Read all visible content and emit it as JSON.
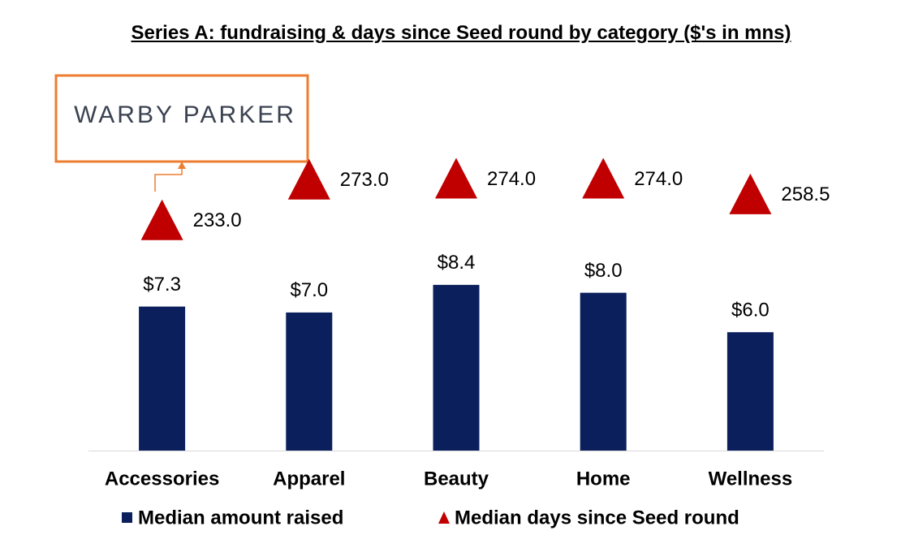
{
  "chart_data": {
    "type": "bar-triangle",
    "title": "Series A: fundraising & days since Seed round by category ($'s in mns)",
    "annotation": "WARBY PARKER",
    "categories": [
      "Accessories",
      "Apparel",
      "Beauty",
      "Home",
      "Wellness"
    ],
    "ylim": [
      0,
      10
    ],
    "y2lim": [
      200,
      300
    ],
    "legend": "bottom",
    "series": [
      {
        "name": "Median amount raised",
        "color": "#0b1f5c",
        "values": [
          7.3,
          7.0,
          8.4,
          8.0,
          6.0
        ],
        "value_labels": [
          "$7.3",
          "$7.0",
          "$8.4",
          "$8.0",
          "$6.0"
        ]
      },
      {
        "name": "Median days since Seed round",
        "color": "#c00000",
        "axis": "y2",
        "values": [
          233.0,
          273.0,
          274.0,
          274.0,
          258.5
        ],
        "value_labels": [
          "233.0",
          "273.0",
          "274.0",
          "274.0",
          "258.5"
        ]
      }
    ]
  }
}
